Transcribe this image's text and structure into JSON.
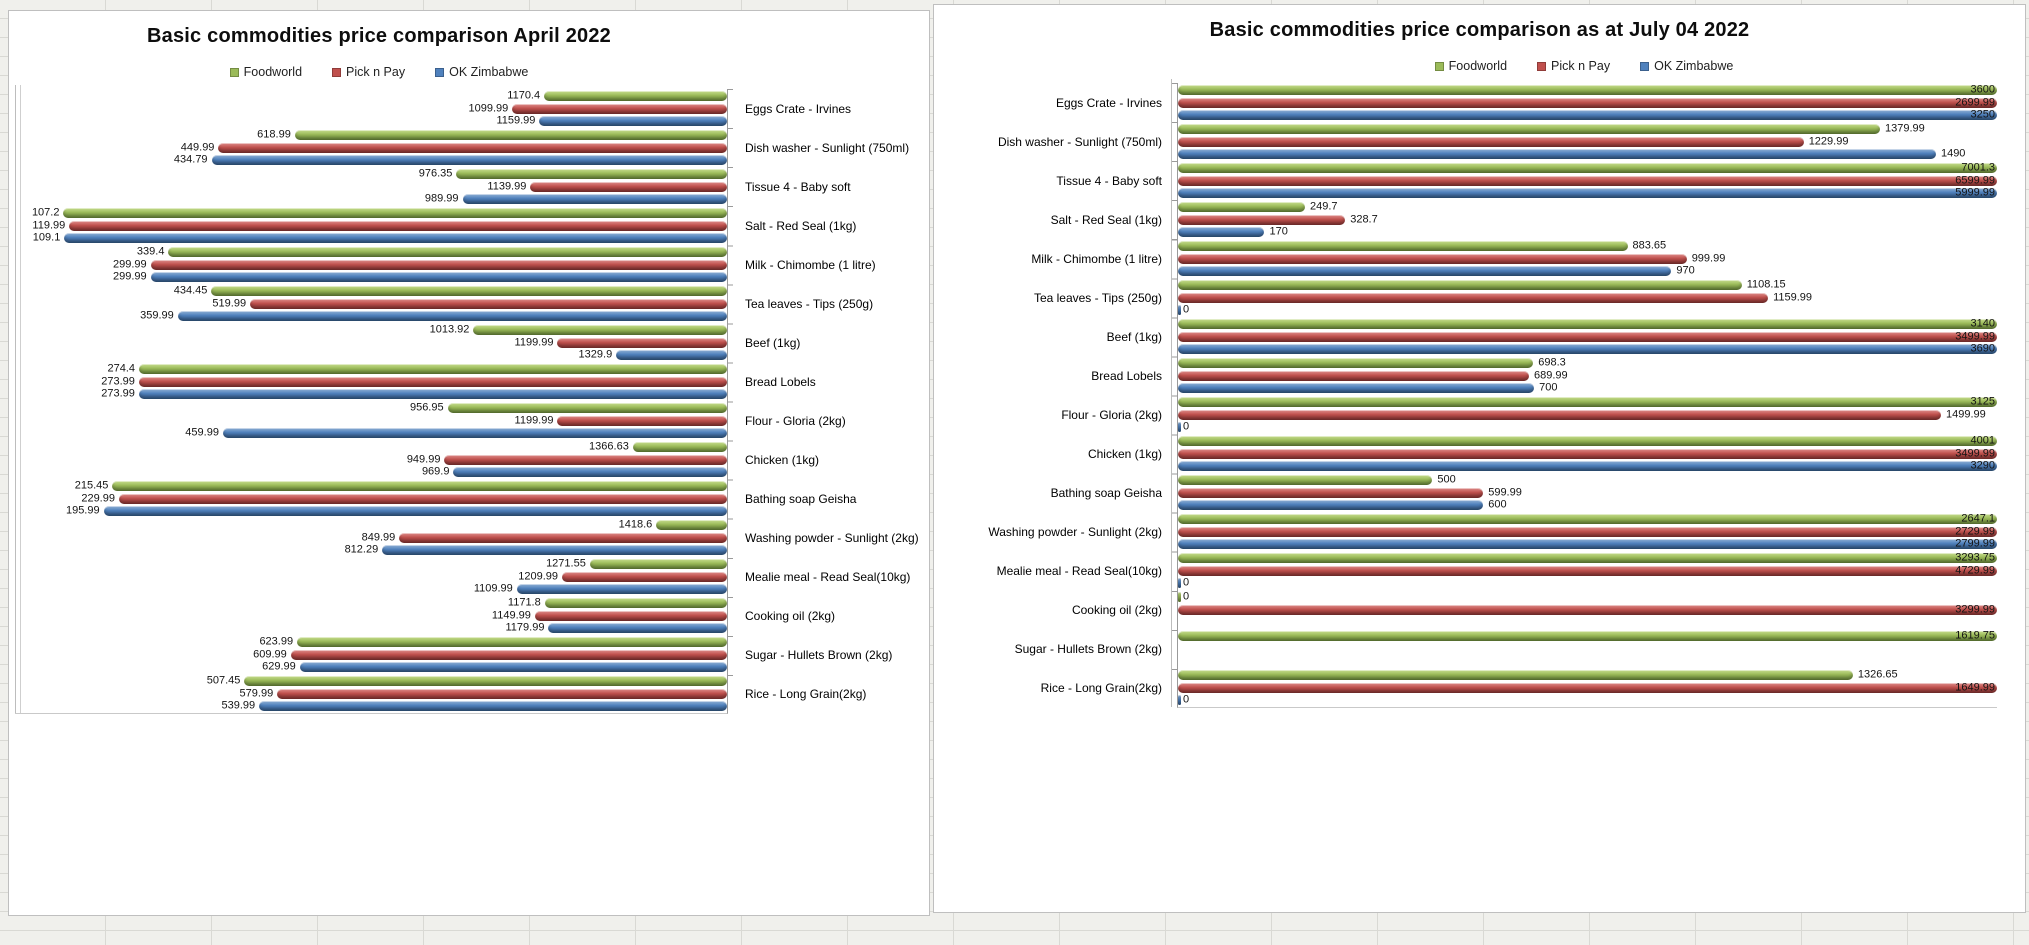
{
  "page": {
    "background_color": "#f0f0ec",
    "panel_color": "#ffffff",
    "series_colors": {
      "Foodworld": "#9BBB59",
      "Pick n Pay": "#C0504D",
      "OK Zimbabwe": "#4F81BD"
    }
  },
  "chart_data": [
    {
      "type": "bar",
      "orientation": "horizontal",
      "title": "Basic commodities price comparison April 2022",
      "legend_position": "top",
      "category_axis_side": "right",
      "bar_direction": "right-to-left",
      "grid": false,
      "value_labels_shown": true,
      "xlim": [
        0,
        1575
      ],
      "xmax": 1575,
      "direction": "rtl",
      "categories": [
        "Eggs Crate - Irvines",
        "Dish washer - Sunlight (750ml)",
        "Tissue 4 - Baby soft",
        "Salt - Red Seal (1kg)",
        "Milk - Chimombe (1 litre)",
        "Tea leaves - Tips (250g)",
        "Beef (1kg)",
        "Bread Lobels",
        "Flour - Gloria (2kg)",
        "Chicken (1kg)",
        "Bathing soap Geisha",
        "Washing powder - Sunlight (2kg)",
        "Mealie meal - Read Seal(10kg)",
        "Cooking oil (2kg)",
        "Sugar - Hullets Brown (2kg)",
        "Rice - Long Grain(2kg)"
      ],
      "series": [
        {
          "name": "Foodworld",
          "key": "s0",
          "color": "#9BBB59",
          "values": [
            1170.4,
            618.99,
            976.35,
            107.2,
            339.4,
            434.45,
            1013.92,
            274.4,
            956.95,
            1366.63,
            215.45,
            1418.6,
            1271.55,
            1171.8,
            623.99,
            507.45
          ]
        },
        {
          "name": "Pick n Pay",
          "key": "s1",
          "color": "#C0504D",
          "values": [
            1099.99,
            449.99,
            1139.99,
            119.99,
            299.99,
            519.99,
            1199.99,
            273.99,
            1199.99,
            949.99,
            229.99,
            849.99,
            1209.99,
            1149.99,
            609.99,
            579.99
          ]
        },
        {
          "name": "OK Zimbabwe",
          "key": "s2",
          "color": "#4F81BD",
          "values": [
            1159.99,
            434.79,
            989.99,
            109.1,
            299.99,
            359.99,
            1329.9,
            273.99,
            459.99,
            969.9,
            195.99,
            812.29,
            1109.99,
            1179.99,
            629.99,
            539.99
          ]
        }
      ]
    },
    {
      "type": "bar",
      "orientation": "horizontal",
      "title": "Basic commodities price comparison as at July 04 2022",
      "legend_position": "top",
      "category_axis_side": "left",
      "bar_direction": "left-to-right",
      "grid": false,
      "value_labels_shown": true,
      "bars_clipped_at_xmax": true,
      "xlim": [
        0,
        1610
      ],
      "xmax": 1610,
      "direction": "ltr",
      "categories": [
        "Eggs Crate - Irvines",
        "Dish washer - Sunlight (750ml)",
        "Tissue 4 - Baby soft",
        "Salt - Red Seal (1kg)",
        "Milk - Chimombe (1 litre)",
        "Tea leaves - Tips (250g)",
        "Beef (1kg)",
        "Bread Lobels",
        "Flour - Gloria (2kg)",
        "Chicken (1kg)",
        "Bathing soap Geisha",
        "Washing powder - Sunlight (2kg)",
        "Mealie meal - Read Seal(10kg)",
        "Cooking oil (2kg)",
        "Sugar - Hullets Brown (2kg)",
        "Rice - Long Grain(2kg)"
      ],
      "series": [
        {
          "name": "Foodworld",
          "key": "s0",
          "color": "#9BBB59",
          "values": [
            3600,
            1379.99,
            7001.3,
            249.7,
            883.65,
            1108.15,
            3140,
            698.3,
            3125,
            4001,
            500,
            2647.1,
            3293.75,
            0,
            1619.75,
            1326.65
          ]
        },
        {
          "name": "Pick n Pay",
          "key": "s1",
          "color": "#C0504D",
          "values": [
            2699.99,
            1229.99,
            6599.99,
            328.7,
            999.99,
            1159.99,
            3499.99,
            689.99,
            1499.99,
            3499.99,
            599.99,
            2729.99,
            4729.99,
            3299.99,
            null,
            1649.99
          ]
        },
        {
          "name": "OK Zimbabwe",
          "key": "s2",
          "color": "#4F81BD",
          "values": [
            3250,
            1490,
            5999.99,
            170,
            970,
            0,
            3690,
            700,
            0,
            3290,
            600,
            2799.99,
            0,
            null,
            null,
            0
          ]
        }
      ]
    }
  ]
}
